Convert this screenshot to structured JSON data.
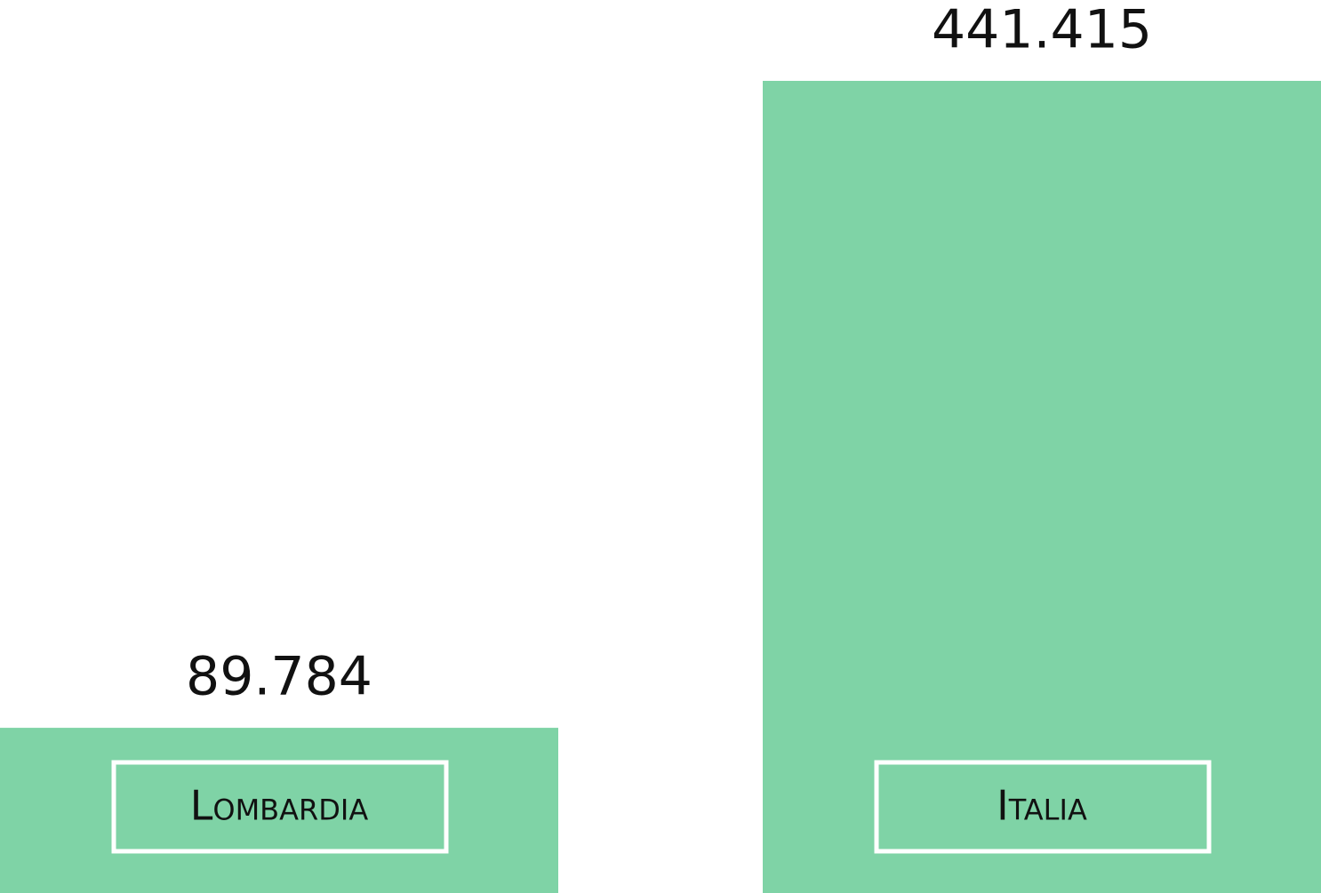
{
  "chart_data": {
    "type": "bar",
    "categories": [
      "Lombardia",
      "Italia"
    ],
    "values": [
      89784,
      441415
    ],
    "value_labels": [
      "89.784",
      "441.415"
    ],
    "color": "#7fd3a6"
  }
}
